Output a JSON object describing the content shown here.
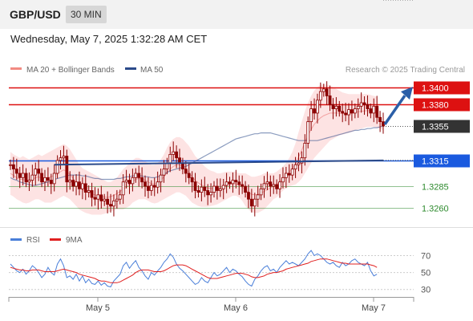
{
  "header": {
    "pair": "GBP/USD",
    "timeframe": "30 MIN"
  },
  "datetime": "Wednesday, May 7, 2025 1:32:28 AM CET",
  "legend_top": [
    {
      "label": "MA 20 + Bollinger Bands",
      "color": "#f28b82"
    },
    {
      "label": "MA 50",
      "color": "#2b4a8a"
    }
  ],
  "legend_bottom": [
    {
      "label": "RSI",
      "color": "#4a7fd9"
    },
    {
      "label": "9MA",
      "color": "#e02020"
    }
  ],
  "copyright": "Research © 2025 Trading Central",
  "colors": {
    "resistance": "#dd1111",
    "support_blue": "#1a5adf",
    "support_green": "#2d8a2d",
    "last": "#333333",
    "candle": "#8b0000",
    "arrow": "#2b5fa8"
  },
  "chart_data": [
    {
      "type": "candlestick",
      "pair": "GBP/USD",
      "timeframe": "30 MIN",
      "x_tick_labels": [
        "May 5",
        "May 6",
        "May 7"
      ],
      "ylim": [
        1.3245,
        1.341
      ],
      "levels": [
        {
          "label": "1.3400",
          "value": 1.34,
          "kind": "resistance",
          "color": "#dd1111"
        },
        {
          "label": "1.3380",
          "value": 1.338,
          "kind": "resistance",
          "color": "#dd1111"
        },
        {
          "label": "1.3355",
          "value": 1.3355,
          "kind": "last",
          "color": "#333333"
        },
        {
          "label": "1.3315",
          "value": 1.3315,
          "kind": "pivot",
          "color": "#1a5adf"
        },
        {
          "label": "1.3285",
          "value": 1.3285,
          "kind": "support",
          "color": "#2d8a2d"
        },
        {
          "label": "1.3260",
          "value": 1.326,
          "kind": "support",
          "color": "#2d8a2d"
        }
      ],
      "closes": [
        1.331,
        1.3305,
        1.33,
        1.3295,
        1.33,
        1.329,
        1.3292,
        1.3298,
        1.3305,
        1.33,
        1.329,
        1.3295,
        1.3292,
        1.3288,
        1.33,
        1.3315,
        1.3318,
        1.332,
        1.329,
        1.3292,
        1.3285,
        1.329,
        1.3282,
        1.3288,
        1.3278,
        1.328,
        1.3272,
        1.327,
        1.3275,
        1.3268,
        1.327,
        1.3264,
        1.3262,
        1.3268,
        1.327,
        1.3275,
        1.329,
        1.3292,
        1.3288,
        1.3295,
        1.33,
        1.3295,
        1.329,
        1.3285,
        1.328,
        1.3286,
        1.3284,
        1.329,
        1.3298,
        1.3305,
        1.3312,
        1.3322,
        1.3325,
        1.3318,
        1.3312,
        1.3305,
        1.33,
        1.3295,
        1.329,
        1.328,
        1.3278,
        1.3284,
        1.328,
        1.3275,
        1.3278,
        1.3285,
        1.328,
        1.3282,
        1.3286,
        1.329,
        1.3288,
        1.3292,
        1.329,
        1.3287,
        1.3285,
        1.3278,
        1.327,
        1.3262,
        1.327,
        1.3275,
        1.3282,
        1.3288,
        1.329,
        1.3285,
        1.3287,
        1.3282,
        1.329,
        1.3295,
        1.33,
        1.3298,
        1.3305,
        1.331,
        1.3312,
        1.3318,
        1.3335,
        1.336,
        1.3375,
        1.337,
        1.3385,
        1.3395,
        1.3398,
        1.339,
        1.338,
        1.3375,
        1.3378,
        1.3372,
        1.337,
        1.3368,
        1.3374,
        1.337,
        1.3375,
        1.3378,
        1.3382,
        1.338,
        1.3375,
        1.337,
        1.3378,
        1.3365,
        1.336,
        1.3355
      ],
      "ma50": [
        1.3295,
        1.3293,
        1.3292,
        1.329,
        1.3289,
        1.3288,
        1.3287,
        1.3286,
        1.3286,
        1.3287,
        1.3288,
        1.3289,
        1.329,
        1.3291,
        1.3293,
        1.3294,
        1.3295,
        1.3296,
        1.3297,
        1.3298,
        1.3298,
        1.3298,
        1.3298,
        1.3297,
        1.3297,
        1.3296,
        1.3295,
        1.3294,
        1.3294,
        1.3293,
        1.3293,
        1.3293,
        1.3293,
        1.3293,
        1.3294,
        1.3294,
        1.3295,
        1.3296,
        1.3296,
        1.3297,
        1.3297,
        1.3297,
        1.3297,
        1.3296,
        1.3296,
        1.3295,
        1.3295,
        1.3296,
        1.3297,
        1.3299,
        1.3301,
        1.3303,
        1.3304,
        1.3305,
        1.3306,
        1.3307,
        1.3308,
        1.331,
        1.3312,
        1.3314,
        1.3316,
        1.3318,
        1.332,
        1.3322,
        1.3324,
        1.3326,
        1.3328,
        1.333,
        1.3332,
        1.3334,
        1.3336,
        1.3338,
        1.334,
        1.3341,
        1.3342,
        1.3343,
        1.3344,
        1.3345,
        1.3346,
        1.3346,
        1.3347,
        1.3347,
        1.3347,
        1.3347,
        1.3346,
        1.3345,
        1.3344,
        1.3343,
        1.3342,
        1.3341,
        1.334,
        1.3339,
        1.3338,
        1.3338,
        1.3338,
        1.3338,
        1.3338,
        1.3338,
        1.3338,
        1.3339,
        1.334,
        1.3341,
        1.3342,
        1.3343,
        1.3344,
        1.3345,
        1.3346,
        1.3347,
        1.3348,
        1.3349,
        1.335,
        1.335,
        1.3351,
        1.3351,
        1.3352,
        1.3352,
        1.3353,
        1.3353,
        1.3354,
        1.3355
      ],
      "bb_upper": [
        1.3325,
        1.3322,
        1.332,
        1.3318,
        1.332,
        1.3318,
        1.3316,
        1.3318,
        1.332,
        1.3322,
        1.332,
        1.3322,
        1.3324,
        1.3326,
        1.3328,
        1.333,
        1.3332,
        1.3334,
        1.3332,
        1.3328,
        1.3322,
        1.3316,
        1.331,
        1.3306,
        1.3304,
        1.3302,
        1.33,
        1.3298,
        1.3296,
        1.3294,
        1.3292,
        1.329,
        1.329,
        1.3292,
        1.3295,
        1.33,
        1.3305,
        1.3308,
        1.3312,
        1.3315,
        1.3318,
        1.3318,
        1.3316,
        1.3314,
        1.3312,
        1.331,
        1.331,
        1.3312,
        1.3316,
        1.3322,
        1.333,
        1.3336,
        1.334,
        1.3342,
        1.3342,
        1.334,
        1.3336,
        1.3332,
        1.3326,
        1.332,
        1.3316,
        1.3312,
        1.3308,
        1.3305,
        1.3303,
        1.3302,
        1.33,
        1.33,
        1.3301,
        1.3302,
        1.3302,
        1.3302,
        1.3302,
        1.33,
        1.33,
        1.33,
        1.3298,
        1.3296,
        1.3296,
        1.3297,
        1.3298,
        1.33,
        1.33,
        1.33,
        1.33,
        1.3302,
        1.3305,
        1.3308,
        1.3312,
        1.3318,
        1.3325,
        1.3335,
        1.3348,
        1.336,
        1.3372,
        1.3382,
        1.339,
        1.3396,
        1.34,
        1.3403,
        1.3404,
        1.3403,
        1.3402,
        1.34,
        1.3398,
        1.3396,
        1.3394,
        1.3393,
        1.3392,
        1.3392,
        1.3392,
        1.3392,
        1.3392,
        1.3392,
        1.3392,
        1.3391,
        1.339,
        1.3389
      ],
      "bb_lower": [
        1.3275,
        1.3273,
        1.327,
        1.3268,
        1.3266,
        1.3265,
        1.3266,
        1.3268,
        1.327,
        1.327,
        1.3268,
        1.3266,
        1.3266,
        1.3266,
        1.3268,
        1.327,
        1.3272,
        1.3274,
        1.3272,
        1.327,
        1.3266,
        1.3262,
        1.3258,
        1.3256,
        1.3254,
        1.3253,
        1.3252,
        1.3252,
        1.3252,
        1.3252,
        1.3253,
        1.3254,
        1.3256,
        1.3257,
        1.3258,
        1.3258,
        1.3258,
        1.326,
        1.3262,
        1.3266,
        1.3268,
        1.327,
        1.327,
        1.327,
        1.3268,
        1.3266,
        1.3265,
        1.3266,
        1.3268,
        1.327,
        1.3272,
        1.3274,
        1.3276,
        1.3278,
        1.3278,
        1.3276,
        1.3274,
        1.327,
        1.3266,
        1.3264,
        1.3262,
        1.3261,
        1.3261,
        1.3261,
        1.3262,
        1.3263,
        1.3264,
        1.3266,
        1.3268,
        1.327,
        1.3272,
        1.3274,
        1.3274,
        1.3272,
        1.3268,
        1.3262,
        1.3258,
        1.3255,
        1.3254,
        1.3254,
        1.3256,
        1.3258,
        1.3262,
        1.3266,
        1.327,
        1.3272,
        1.3276,
        1.328,
        1.3283,
        1.3285,
        1.3286,
        1.3287,
        1.329,
        1.3294,
        1.33,
        1.3306,
        1.3312,
        1.3318,
        1.3322,
        1.3326,
        1.333,
        1.3334,
        1.3338,
        1.334,
        1.3342,
        1.3344,
        1.3345,
        1.3346,
        1.3347,
        1.3348,
        1.335,
        1.3351,
        1.3352,
        1.3353,
        1.3354,
        1.3354,
        1.3354,
        1.3353,
        1.3352,
        1.335
      ],
      "trendline": {
        "from": [
          1.331,
          1.3315
        ],
        "to_last": 1.3315
      },
      "forecast_arrow": {
        "from": 1.3355,
        "to": 1.3395
      }
    },
    {
      "type": "line",
      "indicator": "RSI",
      "ylim": [
        25,
        78
      ],
      "y_ticks": [
        "70",
        "50",
        "30"
      ],
      "y_tick_values": [
        70,
        50,
        30
      ],
      "series": [
        {
          "name": "RSI",
          "values": [
            60,
            56,
            52,
            50,
            54,
            48,
            52,
            58,
            55,
            50,
            44,
            48,
            56,
            50,
            47,
            60,
            66,
            58,
            44,
            46,
            42,
            48,
            40,
            46,
            38,
            42,
            37,
            36,
            40,
            35,
            38,
            34,
            33,
            40,
            44,
            48,
            58,
            62,
            55,
            60,
            64,
            56,
            52,
            46,
            42,
            50,
            47,
            52,
            56,
            62,
            66,
            72,
            68,
            60,
            55,
            52,
            48,
            44,
            40,
            36,
            38,
            44,
            40,
            38,
            44,
            50,
            46,
            48,
            52,
            56,
            50,
            54,
            52,
            48,
            45,
            40,
            36,
            34,
            42,
            46,
            52,
            56,
            58,
            52,
            54,
            50,
            56,
            60,
            64,
            60,
            62,
            60,
            58,
            62,
            66,
            72,
            76,
            70,
            72,
            70,
            66,
            62,
            60,
            62,
            58,
            56,
            62,
            58,
            60,
            64,
            66,
            62,
            60,
            58,
            62,
            52,
            46,
            48
          ]
        },
        {
          "name": "9MA",
          "values": [
            56,
            55,
            54,
            53,
            53,
            52,
            52,
            53,
            53,
            53,
            52,
            51,
            51,
            51,
            51,
            52,
            53,
            54,
            53,
            52,
            51,
            50,
            48,
            47,
            46,
            45,
            44,
            43,
            41,
            40,
            40,
            39,
            38,
            38,
            38,
            39,
            41,
            43,
            45,
            47,
            50,
            52,
            53,
            53,
            53,
            52,
            51,
            51,
            51,
            52,
            54,
            56,
            58,
            59,
            59,
            59,
            58,
            56,
            54,
            52,
            50,
            48,
            46,
            44,
            43,
            43,
            43,
            44,
            45,
            46,
            47,
            48,
            49,
            49,
            49,
            48,
            47,
            45,
            44,
            44,
            45,
            46,
            48,
            49,
            50,
            50,
            51,
            52,
            54,
            55,
            56,
            57,
            58,
            59,
            60,
            61,
            63,
            64,
            65,
            66,
            66,
            66,
            65,
            64,
            63,
            62,
            61,
            61,
            60,
            60,
            60,
            60,
            60,
            60,
            60,
            59,
            58,
            56
          ]
        }
      ]
    }
  ]
}
